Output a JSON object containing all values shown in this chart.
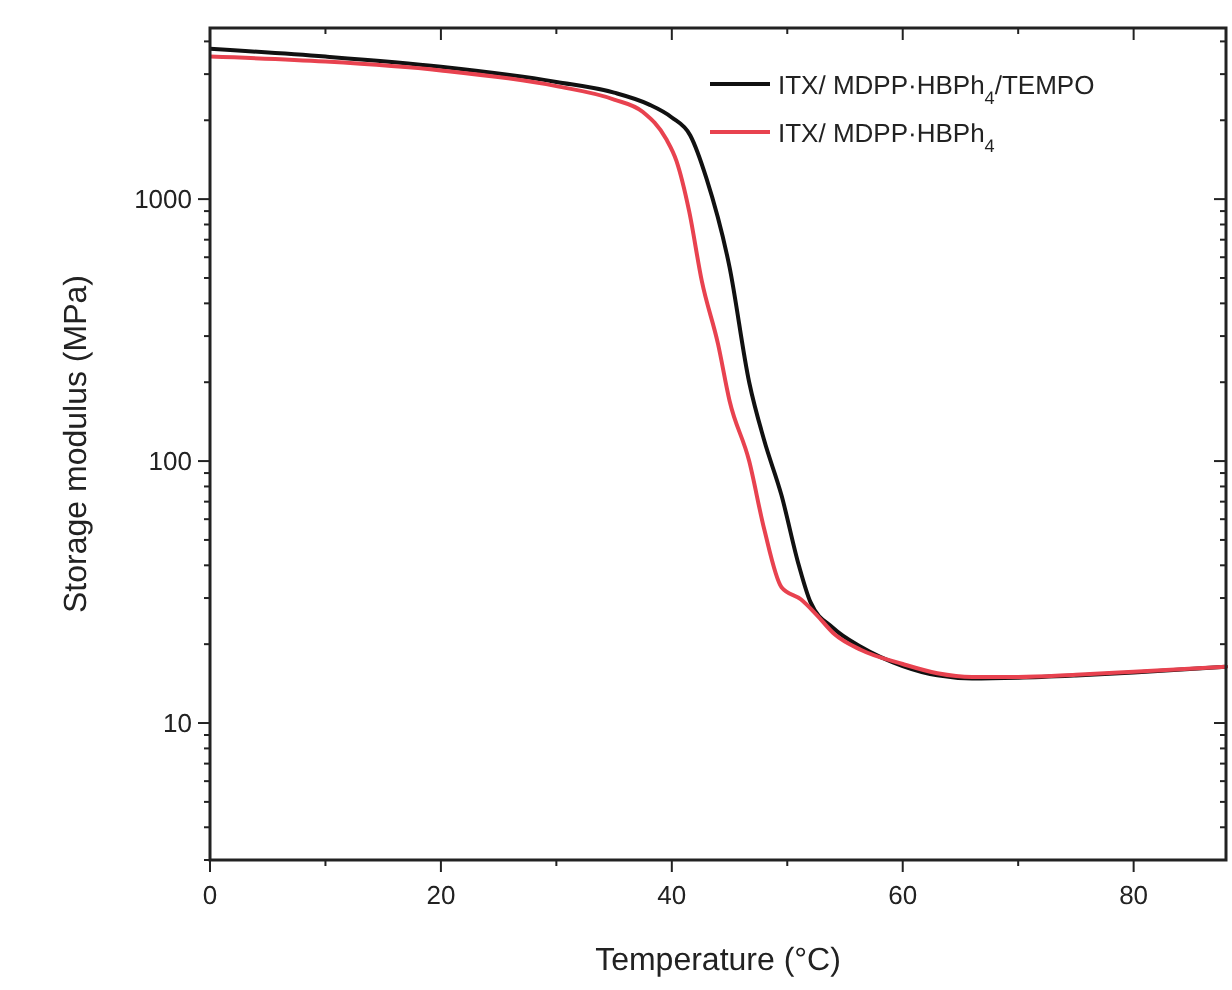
{
  "chart_data": {
    "type": "line",
    "xlabel": "Temperature (°C)",
    "ylabel": "Storage modulus (MPa)",
    "log": "y",
    "xlim": [
      0,
      88
    ],
    "ylim": [
      3,
      4500
    ],
    "xticks": [
      0,
      {
        "value": 10,
        "label": null
      },
      20,
      {
        "value": 30,
        "label": null
      },
      40,
      {
        "value": 50,
        "label": null
      },
      60,
      {
        "value": 70,
        "label": null
      },
      80
    ],
    "yticks": [
      {
        "value": 3,
        "label": null
      },
      {
        "value": 4,
        "label": null
      },
      {
        "value": 5,
        "label": null
      },
      {
        "value": 6,
        "label": null
      },
      {
        "value": 7,
        "label": null
      },
      {
        "value": 8,
        "label": null
      },
      {
        "value": 9,
        "label": null
      },
      10,
      {
        "value": 20,
        "label": null
      },
      {
        "value": 30,
        "label": null
      },
      {
        "value": 40,
        "label": null
      },
      {
        "value": 50,
        "label": null
      },
      {
        "value": 60,
        "label": null
      },
      {
        "value": 70,
        "label": null
      },
      {
        "value": 80,
        "label": null
      },
      {
        "value": 90,
        "label": null
      },
      100,
      {
        "value": 200,
        "label": null
      },
      {
        "value": 300,
        "label": null
      },
      {
        "value": 400,
        "label": null
      },
      {
        "value": 500,
        "label": null
      },
      {
        "value": 600,
        "label": null
      },
      {
        "value": 700,
        "label": null
      },
      {
        "value": 800,
        "label": null
      },
      {
        "value": 900,
        "label": null
      },
      1000,
      {
        "value": 2000,
        "label": null
      },
      {
        "value": 3000,
        "label": null
      },
      {
        "value": 4000,
        "label": null
      }
    ],
    "grid": false,
    "legend": "top right",
    "line_style": "solid",
    "series": [
      {
        "name": "ITX/ MDPP·HBPh$_{4}$/TEMPO",
        "color": "#111111",
        "x": [
          0,
          10,
          20,
          30,
          35,
          38,
          40,
          41.6,
          43,
          45,
          46.7,
          48,
          49.5,
          51,
          52,
          54,
          56.4,
          60,
          63,
          66,
          70,
          75,
          80,
          88
        ],
        "values": [
          3750,
          3500,
          3200,
          2800,
          2550,
          2300,
          2050,
          1750,
          1200,
          550,
          200,
          120,
          74,
          40,
          29,
          23,
          19.5,
          16.5,
          15.2,
          14.8,
          14.9,
          15.2,
          15.6,
          16.4
        ]
      },
      {
        "name": "ITX/ MDPP·HBPh$_{4}$",
        "color": "#e8424f",
        "x": [
          0,
          10,
          20,
          30,
          35,
          37.5,
          39.5,
          40.4,
          41.5,
          42.6,
          44,
          45,
          46.7,
          48,
          49.5,
          51.2,
          52.5,
          54.1,
          56.4,
          60,
          63,
          66,
          70,
          75,
          80,
          88
        ],
        "values": [
          3500,
          3350,
          3100,
          2700,
          2400,
          2150,
          1700,
          1400,
          900,
          486,
          280,
          170,
          100,
          55,
          33,
          29.6,
          26,
          21.8,
          19,
          16.8,
          15.5,
          15,
          15,
          15.3,
          15.7,
          16.4
        ]
      }
    ]
  }
}
